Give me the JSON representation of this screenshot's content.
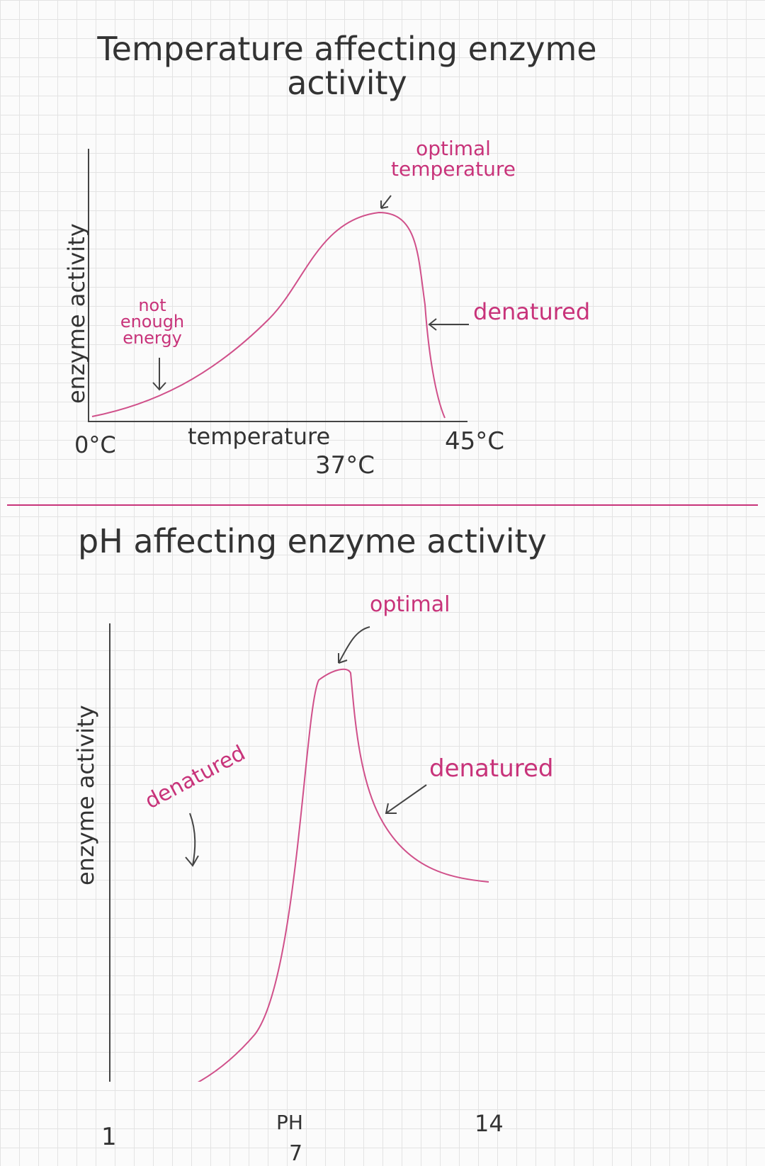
{
  "sections": [
    {
      "title": "Temperature affecting enzyme activity",
      "y_axis_label": "enzyme activity",
      "x_axis_label": "temperature",
      "x_ticks": [
        "0°C",
        "37°C",
        "45°C"
      ],
      "annotations": [
        "optimal temperature",
        "not enough energy",
        "denatured"
      ]
    },
    {
      "title": "pH affecting enzyme activity",
      "y_axis_label": "enzyme activity",
      "x_axis_label": "PH",
      "x_ticks": [
        "1",
        "7",
        "14"
      ],
      "annotations": [
        "optimal",
        "denatured",
        "denatured"
      ]
    }
  ]
}
